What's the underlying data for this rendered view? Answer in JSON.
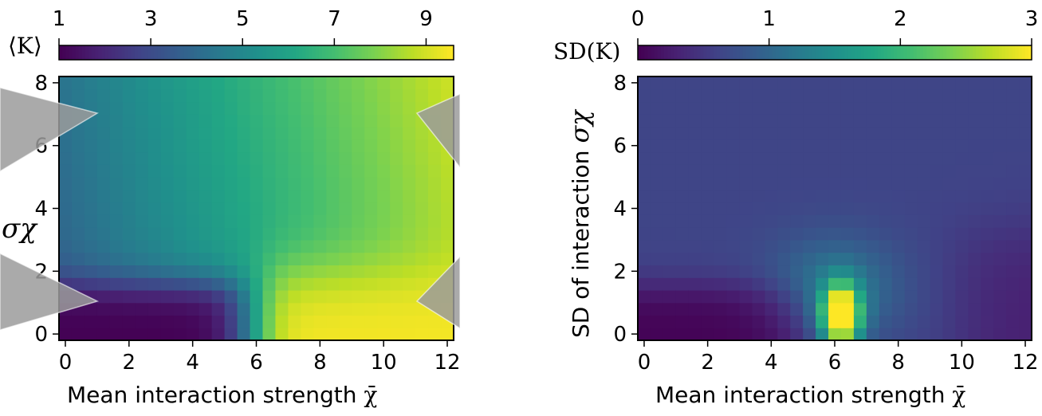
{
  "chart_data": [
    {
      "type": "heatmap",
      "title": "",
      "xlabel": "Mean interaction strength χ̄",
      "ylabel": "σχ",
      "xlim": [
        -0.2,
        12.2
      ],
      "ylim": [
        -0.2,
        8.2
      ],
      "xticks": [
        "0",
        "2",
        "4",
        "6",
        "8",
        "10",
        "12"
      ],
      "yticks": [
        "0",
        "2",
        "4",
        "6",
        "8"
      ],
      "colorbar": {
        "label": "⟨K⟩",
        "range": [
          1,
          9.6
        ],
        "ticks": [
          "1",
          "3",
          "5",
          "7",
          "9"
        ],
        "colormap": "viridis",
        "position": "top"
      },
      "grid_x": "0 to 12 in steps of 0.4",
      "grid_y": "0 to 8 in steps of 0.4",
      "description_of_values": {
        "low_region": "χ̄ < 5.5 and σχ < 1.5: ⟨K⟩ ≈ 1",
        "high_region": "χ̄ ≈ 7–8.5 and σχ < 1: ⟨K⟩ ≈ 9.5",
        "top_left": "σχ ≈ 8, χ̄ ≈ 0: ⟨K⟩ ≈ 4",
        "right_edge": "χ̄ ≈ 12: ⟨K⟩ ≈ 8.5"
      }
    },
    {
      "type": "heatmap",
      "title": "",
      "xlabel": "Mean interaction strength χ̄",
      "ylabel": "SD of interaction σχ",
      "xlim": [
        -0.2,
        12.2
      ],
      "ylim": [
        -0.2,
        8.2
      ],
      "xticks": [
        "0",
        "2",
        "4",
        "6",
        "8",
        "10",
        "12"
      ],
      "yticks": [
        "0",
        "2",
        "4",
        "6",
        "8"
      ],
      "colorbar": {
        "label": "SD(K)",
        "range": [
          0,
          3
        ],
        "ticks": [
          "0",
          "1",
          "2",
          "3"
        ],
        "colormap": "viridis",
        "position": "top"
      },
      "description_of_values": {
        "peak": "χ̄ ≈ 6–6.5, σχ ≈ 0.2–1: SD(K) ≈ 3",
        "low_region": "χ̄ < 5 and σχ < 1.5: SD(K) ≈ 0",
        "background": "most of the plane: SD(K) ≈ 0.6"
      }
    }
  ],
  "panel_left": {
    "colorbar_label": "⟨K⟩",
    "colorbar_ticks": [
      "1",
      "3",
      "5",
      "7",
      "9"
    ],
    "x_ticks": [
      "0",
      "2",
      "4",
      "6",
      "8",
      "10",
      "12"
    ],
    "y_ticks": [
      "0",
      "2",
      "4",
      "6",
      "8"
    ],
    "xlabel_text": "Mean interaction strength ",
    "xlabel_symbol": "χ̄",
    "ylabel_symbol": "σχ"
  },
  "panel_right": {
    "colorbar_label": "SD(K)",
    "colorbar_ticks": [
      "0",
      "1",
      "2",
      "3"
    ],
    "x_ticks": [
      "0",
      "2",
      "4",
      "6",
      "8",
      "10",
      "12"
    ],
    "y_ticks": [
      "0",
      "2",
      "4",
      "6",
      "8"
    ],
    "xlabel_text": "Mean interaction strength ",
    "xlabel_symbol": "χ̄",
    "ylabel_text": "SD of interaction ",
    "ylabel_symbol": "σχ"
  },
  "colors": {
    "overlay_arrows": "#9b9b9b"
  }
}
